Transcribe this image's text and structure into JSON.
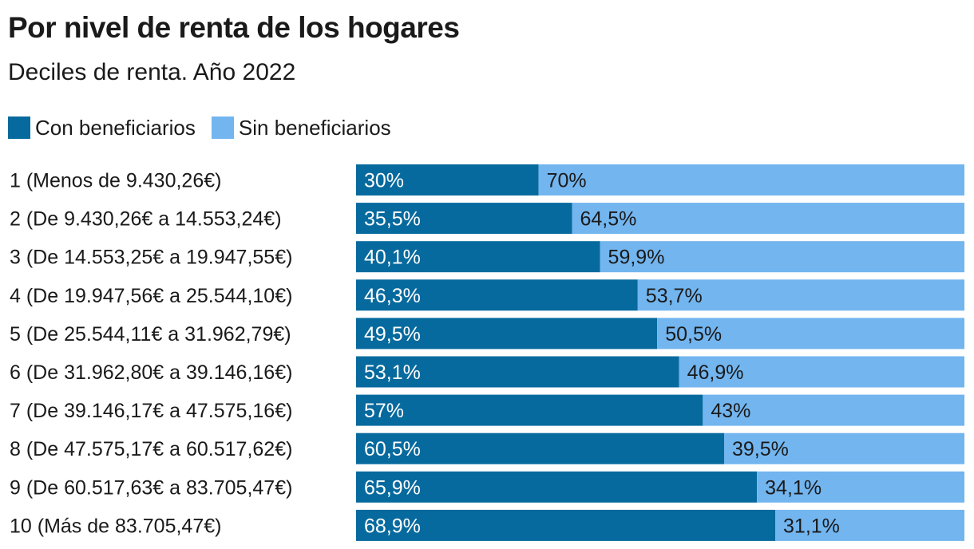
{
  "colors": {
    "con": "#076a9e",
    "sin": "#72b5ef",
    "label_on_con": "#ffffff",
    "label_on_sin": "#1a1a1a",
    "text": "#1a1a1a"
  },
  "legend": {
    "con_label": "Con beneficiarios",
    "sin_label": "Sin beneficiarios"
  },
  "chart_data": {
    "type": "bar",
    "orientation": "horizontal",
    "stacked": true,
    "title": "Por nivel de renta de los hogares",
    "subtitle": "Deciles de renta. Año 2022",
    "legend_position": "top-left",
    "grid": false,
    "xlim": [
      0,
      100
    ],
    "categories": [
      "1 (Menos de 9.430,26€)",
      "2 (De 9.430,26€ a 14.553,24€)",
      "3 (De 14.553,25€ a 19.947,55€)",
      "4 (De 19.947,56€ a 25.544,10€)",
      "5 (De 25.544,11€ a 31.962,79€)",
      "6 (De 31.962,80€ a 39.146,16€)",
      "7 (De 39.146,17€ a 47.575,16€)",
      "8 (De 47.575,17€ a 60.517,62€)",
      "9 (De 60.517,63€ a 83.705,47€)",
      "10 (Más de 83.705,47€)"
    ],
    "series": [
      {
        "name": "Con beneficiarios",
        "values": [
          30,
          35.5,
          40.1,
          46.3,
          49.5,
          53.1,
          57,
          60.5,
          65.9,
          68.9
        ],
        "labels": [
          "30%",
          "35,5%",
          "40,1%",
          "46,3%",
          "49,5%",
          "53,1%",
          "57%",
          "60,5%",
          "65,9%",
          "68,9%"
        ]
      },
      {
        "name": "Sin beneficiarios",
        "values": [
          70,
          64.5,
          59.9,
          53.7,
          50.5,
          46.9,
          43,
          39.5,
          34.1,
          31.1
        ],
        "labels": [
          "70%",
          "64,5%",
          "59,9%",
          "53,7%",
          "50,5%",
          "46,9%",
          "43%",
          "39,5%",
          "34,1%",
          "31,1%"
        ]
      }
    ]
  }
}
